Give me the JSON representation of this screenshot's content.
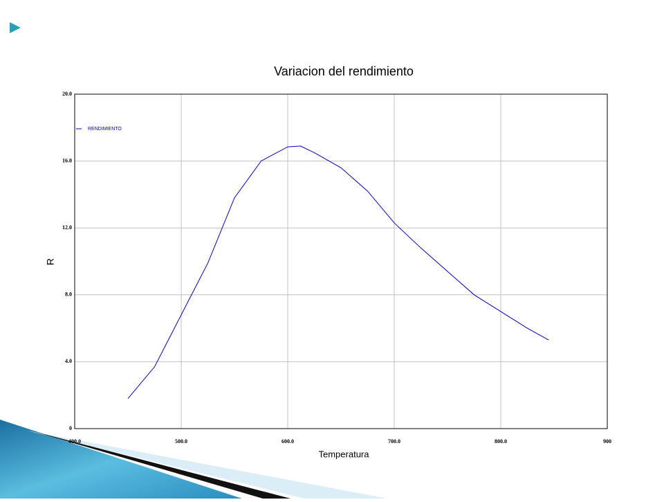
{
  "chart_data": {
    "type": "line",
    "title": "Variacion del rendimiento",
    "x_label": "Temperatura",
    "y_label": "R",
    "x": [
      450,
      475,
      500,
      525,
      550,
      575,
      600,
      612,
      625,
      650,
      675,
      700,
      725,
      750,
      775,
      800,
      825,
      845
    ],
    "series": [
      {
        "name": "RENDIMIENTO",
        "color": "#0000c0",
        "values": [
          1.8,
          3.7,
          6.8,
          9.9,
          13.8,
          16.0,
          16.85,
          16.9,
          16.5,
          15.6,
          14.2,
          12.3,
          10.8,
          9.4,
          8.0,
          7.0,
          6.0,
          5.3
        ]
      }
    ],
    "xlim": [
      400,
      900
    ],
    "xticks": [
      {
        "value": 400,
        "label": "400.0"
      },
      {
        "value": 500,
        "label": "500.0"
      },
      {
        "value": 600,
        "label": "600.0"
      },
      {
        "value": 700,
        "label": "700.0"
      },
      {
        "value": 800,
        "label": "800.0"
      },
      900
    ],
    "ylim": [
      0,
      20
    ],
    "yticks": [
      0,
      {
        "value": 4,
        "label": "4.0"
      },
      {
        "value": 8,
        "label": "8.0"
      },
      {
        "value": 12,
        "label": "12.0"
      },
      {
        "value": 16,
        "label": "16.0"
      },
      {
        "value": 20,
        "label": "20.0"
      }
    ],
    "grid": true,
    "legend": "top-left"
  }
}
